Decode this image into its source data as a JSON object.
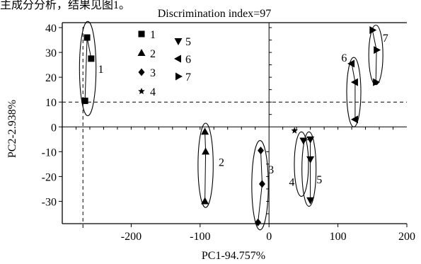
{
  "caption_fragment": "主成分分析，结果见图1。",
  "chart_data": {
    "type": "scatter",
    "title": "Discrimination  index=97",
    "xlabel": "PC1-94.757%",
    "ylabel": "PC2-2.938%",
    "xlim": [
      -300,
      200
    ],
    "ylim": [
      -39,
      42
    ],
    "xticks": [
      -200,
      -100,
      0,
      100,
      200
    ],
    "yticks": [
      40,
      30,
      20,
      10,
      0,
      -10,
      -20,
      -30
    ],
    "grid": false,
    "legend_position": "top-left, inside plot",
    "reference_lines": {
      "x": -270,
      "y": 10
    },
    "series": [
      {
        "name": "1",
        "marker": "square",
        "points": [
          [
            -267,
            10.5
          ],
          [
            -264,
            36
          ],
          [
            -258,
            27.5
          ]
        ]
      },
      {
        "name": "2",
        "marker": "triangle-up",
        "points": [
          [
            -93,
            -2
          ],
          [
            -92,
            -10
          ],
          [
            -93,
            -30
          ]
        ]
      },
      {
        "name": "3",
        "marker": "diamond",
        "points": [
          [
            -12,
            -9.5
          ],
          [
            -10,
            -23
          ],
          [
            -16,
            -38.5
          ]
        ]
      },
      {
        "name": "4",
        "marker": "star",
        "points": [
          [
            37,
            -1.5
          ]
        ]
      },
      {
        "name": "5",
        "marker": "triangle-down",
        "points": [
          [
            50,
            -5.5
          ],
          [
            60,
            -5
          ],
          [
            60,
            -13
          ],
          [
            60,
            -29.5
          ]
        ]
      },
      {
        "name": "6",
        "marker": "triangle-left",
        "points": [
          [
            120,
            25.5
          ],
          [
            125,
            18
          ],
          [
            125,
            3
          ]
        ]
      },
      {
        "name": "7",
        "marker": "triangle-right",
        "points": [
          [
            150,
            39
          ],
          [
            156,
            31
          ],
          [
            155,
            18
          ]
        ]
      }
    ],
    "clusters": [
      {
        "label": "1",
        "center": [
          -263,
          23.5
        ],
        "rx": 12,
        "ry": 19,
        "label_at": [
          -244,
          23.5
        ]
      },
      {
        "label": "2",
        "center": [
          -92,
          -15.5
        ],
        "rx": 11,
        "ry": 17,
        "label_at": [
          -69,
          -14
        ]
      },
      {
        "label": "3",
        "center": [
          -13,
          -23.5
        ],
        "rx": 12,
        "ry": 18,
        "label_at": [
          3,
          -17
        ]
      },
      {
        "label": "4",
        "center": [
          47,
          -15
        ],
        "rx": 8,
        "ry": 13,
        "label_at": [
          33,
          -22
        ]
      },
      {
        "label": "5",
        "center": [
          58,
          -17
        ],
        "rx": 7,
        "ry": 15,
        "label_at": [
          73,
          -21
        ]
      },
      {
        "label": "6",
        "center": [
          123,
          14
        ],
        "rx": 10,
        "ry": 14,
        "label_at": [
          109,
          28
        ]
      },
      {
        "label": "7",
        "center": [
          155,
          29
        ],
        "rx": 8,
        "ry": 12,
        "label_at": [
          169,
          36
        ]
      }
    ]
  }
}
